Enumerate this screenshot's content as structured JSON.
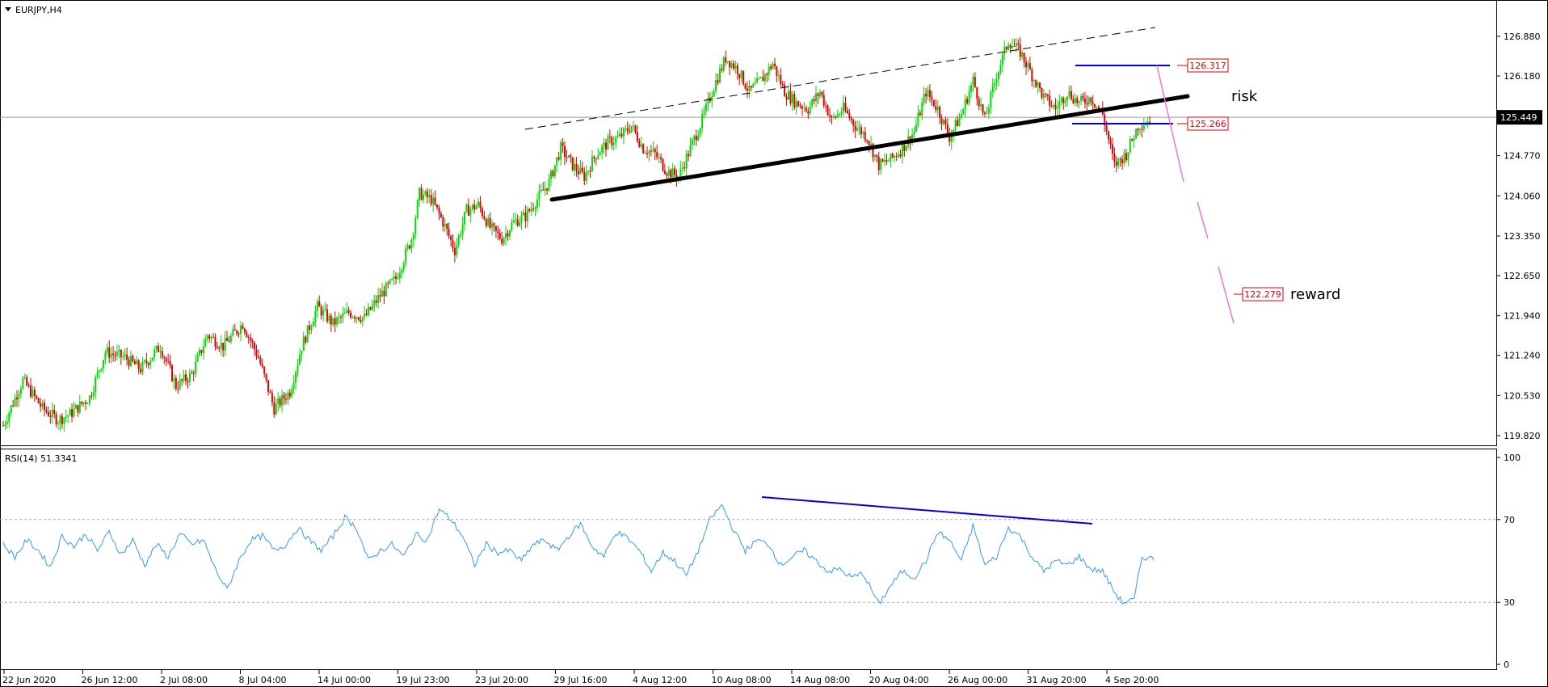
{
  "symbol_label": "EURJPY,H4",
  "indicator_label": "RSI(14) 51.3341",
  "annotations": {
    "risk": "risk",
    "reward": "reward"
  },
  "colors": {
    "bull": "#00dd00",
    "bear": "#e00000",
    "rsi": "#3399ff",
    "blue_line": "#0000dd",
    "pink": "#ee77cc",
    "label_red": "#e00000"
  },
  "chart_data": [
    {
      "type": "candlestick",
      "timeframe": "H4",
      "ylim": [
        119.6,
        127.4
      ],
      "y_ticks": [
        "126.880",
        "126.180",
        "125.449",
        "124.770",
        "124.060",
        "123.350",
        "122.650",
        "121.940",
        "121.240",
        "120.530",
        "119.820"
      ],
      "current_price": "125.449",
      "x_ticks": [
        "22 Jun 2020",
        "26 Jun 12:00",
        "2 Jul 08:00",
        "8 Jul 04:00",
        "14 Jul 00:00",
        "19 Jul 23:00",
        "23 Jul 20:00",
        "29 Jul 16:00",
        "4 Aug 12:00",
        "10 Aug 08:00",
        "14 Aug 08:00",
        "20 Aug 04:00",
        "26 Aug 00:00",
        "31 Aug 20:00",
        "4 Sep 20:00"
      ],
      "close_path": [
        [
          0,
          120.0
        ],
        [
          10,
          120.8
        ],
        [
          20,
          120.3
        ],
        [
          28,
          120.1
        ],
        [
          34,
          120.2
        ],
        [
          44,
          120.5
        ],
        [
          52,
          121.3
        ],
        [
          62,
          121.2
        ],
        [
          70,
          121.0
        ],
        [
          80,
          121.4
        ],
        [
          88,
          120.7
        ],
        [
          96,
          120.9
        ],
        [
          104,
          121.6
        ],
        [
          112,
          121.4
        ],
        [
          122,
          121.8
        ],
        [
          130,
          121.2
        ],
        [
          138,
          120.3
        ],
        [
          146,
          120.6
        ],
        [
          152,
          121.4
        ],
        [
          160,
          122.1
        ],
        [
          168,
          121.8
        ],
        [
          176,
          122.0
        ],
        [
          184,
          121.9
        ],
        [
          192,
          122.3
        ],
        [
          200,
          122.6
        ],
        [
          208,
          123.3
        ],
        [
          212,
          124.1
        ],
        [
          218,
          124.0
        ],
        [
          224,
          123.6
        ],
        [
          230,
          123.1
        ],
        [
          236,
          123.8
        ],
        [
          242,
          123.9
        ],
        [
          248,
          123.5
        ],
        [
          254,
          123.3
        ],
        [
          260,
          123.6
        ],
        [
          266,
          123.7
        ],
        [
          272,
          124.0
        ],
        [
          278,
          124.3
        ],
        [
          284,
          124.9
        ],
        [
          290,
          124.6
        ],
        [
          296,
          124.4
        ],
        [
          302,
          124.8
        ],
        [
          308,
          125.0
        ],
        [
          314,
          125.1
        ],
        [
          320,
          125.3
        ],
        [
          326,
          124.9
        ],
        [
          332,
          124.8
        ],
        [
          338,
          124.5
        ],
        [
          344,
          124.4
        ],
        [
          350,
          124.9
        ],
        [
          356,
          125.4
        ],
        [
          362,
          126.0
        ],
        [
          368,
          126.5
        ],
        [
          374,
          126.3
        ],
        [
          380,
          125.9
        ],
        [
          386,
          126.1
        ],
        [
          392,
          126.4
        ],
        [
          398,
          125.9
        ],
        [
          404,
          125.7
        ],
        [
          410,
          125.6
        ],
        [
          416,
          125.9
        ],
        [
          422,
          125.4
        ],
        [
          428,
          125.6
        ],
        [
          434,
          125.3
        ],
        [
          440,
          125.1
        ],
        [
          446,
          124.6
        ],
        [
          452,
          124.7
        ],
        [
          458,
          124.9
        ],
        [
          464,
          125.2
        ],
        [
          470,
          125.9
        ],
        [
          476,
          125.6
        ],
        [
          482,
          125.1
        ],
        [
          488,
          125.5
        ],
        [
          494,
          126.1
        ],
        [
          500,
          125.4
        ],
        [
          506,
          126.2
        ],
        [
          512,
          126.8
        ],
        [
          518,
          126.6
        ],
        [
          524,
          126.2
        ],
        [
          530,
          125.8
        ],
        [
          536,
          125.6
        ],
        [
          542,
          125.9
        ],
        [
          548,
          125.7
        ],
        [
          554,
          125.8
        ],
        [
          560,
          125.5
        ],
        [
          566,
          124.6
        ],
        [
          572,
          124.8
        ],
        [
          578,
          125.3
        ],
        [
          584,
          125.4
        ]
      ],
      "rsi": {
        "ylim": [
          0,
          100
        ],
        "levels": [
          "70",
          "30"
        ],
        "scale_labels": [
          "100",
          "70",
          "30",
          "0"
        ],
        "path": [
          [
            0,
            58
          ],
          [
            6,
            52
          ],
          [
            12,
            60
          ],
          [
            18,
            55
          ],
          [
            24,
            47
          ],
          [
            30,
            62
          ],
          [
            36,
            57
          ],
          [
            42,
            63
          ],
          [
            48,
            55
          ],
          [
            54,
            64
          ],
          [
            60,
            53
          ],
          [
            66,
            60
          ],
          [
            72,
            48
          ],
          [
            78,
            58
          ],
          [
            84,
            52
          ],
          [
            90,
            63
          ],
          [
            96,
            58
          ],
          [
            102,
            60
          ],
          [
            108,
            46
          ],
          [
            114,
            36
          ],
          [
            120,
            50
          ],
          [
            126,
            60
          ],
          [
            132,
            62
          ],
          [
            138,
            55
          ],
          [
            144,
            58
          ],
          [
            150,
            66
          ],
          [
            156,
            60
          ],
          [
            162,
            55
          ],
          [
            168,
            62
          ],
          [
            174,
            71
          ],
          [
            180,
            66
          ],
          [
            186,
            50
          ],
          [
            192,
            55
          ],
          [
            198,
            58
          ],
          [
            204,
            52
          ],
          [
            210,
            63
          ],
          [
            216,
            60
          ],
          [
            222,
            75
          ],
          [
            228,
            70
          ],
          [
            234,
            62
          ],
          [
            240,
            48
          ],
          [
            246,
            58
          ],
          [
            252,
            54
          ],
          [
            258,
            55
          ],
          [
            264,
            50
          ],
          [
            270,
            58
          ],
          [
            276,
            60
          ],
          [
            282,
            55
          ],
          [
            288,
            62
          ],
          [
            294,
            68
          ],
          [
            300,
            57
          ],
          [
            306,
            52
          ],
          [
            312,
            64
          ],
          [
            318,
            61
          ],
          [
            324,
            55
          ],
          [
            330,
            45
          ],
          [
            336,
            54
          ],
          [
            342,
            50
          ],
          [
            348,
            43
          ],
          [
            354,
            55
          ],
          [
            360,
            70
          ],
          [
            366,
            77
          ],
          [
            372,
            65
          ],
          [
            378,
            55
          ],
          [
            384,
            60
          ],
          [
            390,
            58
          ],
          [
            396,
            48
          ],
          [
            402,
            52
          ],
          [
            408,
            55
          ],
          [
            414,
            50
          ],
          [
            420,
            45
          ],
          [
            426,
            46
          ],
          [
            432,
            42
          ],
          [
            438,
            44
          ],
          [
            446,
            29
          ],
          [
            452,
            38
          ],
          [
            458,
            45
          ],
          [
            464,
            42
          ],
          [
            470,
            50
          ],
          [
            476,
            64
          ],
          [
            482,
            60
          ],
          [
            488,
            50
          ],
          [
            494,
            67
          ],
          [
            500,
            48
          ],
          [
            506,
            52
          ],
          [
            512,
            66
          ],
          [
            518,
            62
          ],
          [
            524,
            52
          ],
          [
            530,
            45
          ],
          [
            536,
            50
          ],
          [
            542,
            48
          ],
          [
            548,
            52
          ],
          [
            554,
            46
          ],
          [
            560,
            45
          ],
          [
            566,
            35
          ],
          [
            570,
            30
          ],
          [
            576,
            31
          ],
          [
            580,
            52
          ],
          [
            586,
            51
          ]
        ]
      },
      "price_labels": {
        "top": "126.317",
        "mid": "125.266",
        "reward": "122.279"
      }
    }
  ]
}
